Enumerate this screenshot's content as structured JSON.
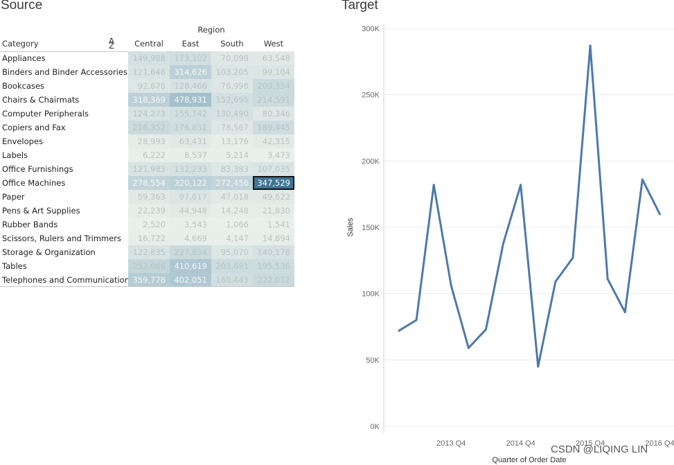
{
  "source": {
    "title": "Source",
    "region_header": "Region",
    "category_header": "Category",
    "sort_icon": "sort-alpha-icon",
    "regions": [
      "Central",
      "East",
      "South",
      "West"
    ],
    "rows": [
      {
        "category": "Appliances",
        "values": [
          "149,988",
          "173,102",
          "70,098",
          "63,548"
        ]
      },
      {
        "category": "Binders and Binder Accessories",
        "values": [
          "121,648",
          "314,626",
          "103,205",
          "99,104"
        ]
      },
      {
        "category": "Bookcases",
        "values": [
          "92,678",
          "128,466",
          "76,998",
          "209,354"
        ]
      },
      {
        "category": "Chairs & Chairmats",
        "values": [
          "318,369",
          "478,931",
          "152,695",
          "214,591"
        ]
      },
      {
        "category": "Computer Peripherals",
        "values": [
          "124,273",
          "155,742",
          "130,490",
          "80,346"
        ]
      },
      {
        "category": "Copiers and Fax",
        "values": [
          "216,352",
          "176,851",
          "78,567",
          "189,445"
        ]
      },
      {
        "category": "Envelopes",
        "values": [
          "28,993",
          "63,431",
          "13,176",
          "42,315"
        ]
      },
      {
        "category": "Labels",
        "values": [
          "6,222",
          "8,537",
          "5,214",
          "3,473"
        ]
      },
      {
        "category": "Office Furnishings",
        "values": [
          "121,983",
          "132,233",
          "83,383",
          "107,035"
        ]
      },
      {
        "category": "Office Machines",
        "values": [
          "278,554",
          "320,122",
          "272,456",
          "347,529"
        ]
      },
      {
        "category": "Paper",
        "values": [
          "59,363",
          "97,617",
          "47,018",
          "49,622"
        ]
      },
      {
        "category": "Pens & Art Supplies",
        "values": [
          "22,239",
          "44,948",
          "14,248",
          "21,830"
        ]
      },
      {
        "category": "Rubber Bands",
        "values": [
          "2,520",
          "3,543",
          "1,066",
          "1,541"
        ]
      },
      {
        "category": "Scissors, Rulers and Trimmers",
        "values": [
          "16,722",
          "4,669",
          "4,147",
          "14,894"
        ]
      },
      {
        "category": "Storage & Organization",
        "values": [
          "122,835",
          "227,634",
          "95,070",
          "140,178"
        ]
      },
      {
        "category": "Tables",
        "values": [
          "252,086",
          "410,619",
          "203,681",
          "195,536"
        ]
      },
      {
        "category": "Telephones and Communication",
        "values": [
          "359,778",
          "402,051",
          "160,443",
          "222,012"
        ]
      }
    ],
    "selected_cell": {
      "category": "Office Machines",
      "region": "West",
      "value": "347,529"
    }
  },
  "target": {
    "title": "Target",
    "line_color": "#4e79a7"
  },
  "chart_data": {
    "type": "line",
    "xlabel": "Quarter of Order Date",
    "ylabel": "Sales",
    "ylim": [
      0,
      300000
    ],
    "y_ticks": [
      0,
      50000,
      100000,
      150000,
      200000,
      250000,
      300000
    ],
    "y_tick_labels": [
      "0K",
      "50K",
      "100K",
      "150K",
      "200K",
      "250K",
      "300K"
    ],
    "x_tick_labels": [
      "2013 Q4",
      "2014 Q4",
      "2015 Q4",
      "2016 Q4"
    ],
    "x_tick_positions": [
      3,
      7,
      11,
      15
    ],
    "x": [
      "2013 Q1",
      "2013 Q2",
      "2013 Q3",
      "2013 Q4",
      "2014 Q1",
      "2014 Q2",
      "2014 Q3",
      "2014 Q4",
      "2015 Q1",
      "2015 Q2",
      "2015 Q3",
      "2015 Q4",
      "2016 Q1",
      "2016 Q2",
      "2016 Q3",
      "2016 Q4"
    ],
    "series": [
      {
        "values": [
          72000,
          80000,
          182000,
          106000,
          59000,
          73000,
          138000,
          182000,
          45000,
          109000,
          127000,
          287000,
          111000,
          86000,
          186000,
          160000
        ]
      }
    ],
    "grid": true
  },
  "watermark": "CSDN @LIQING LIN"
}
